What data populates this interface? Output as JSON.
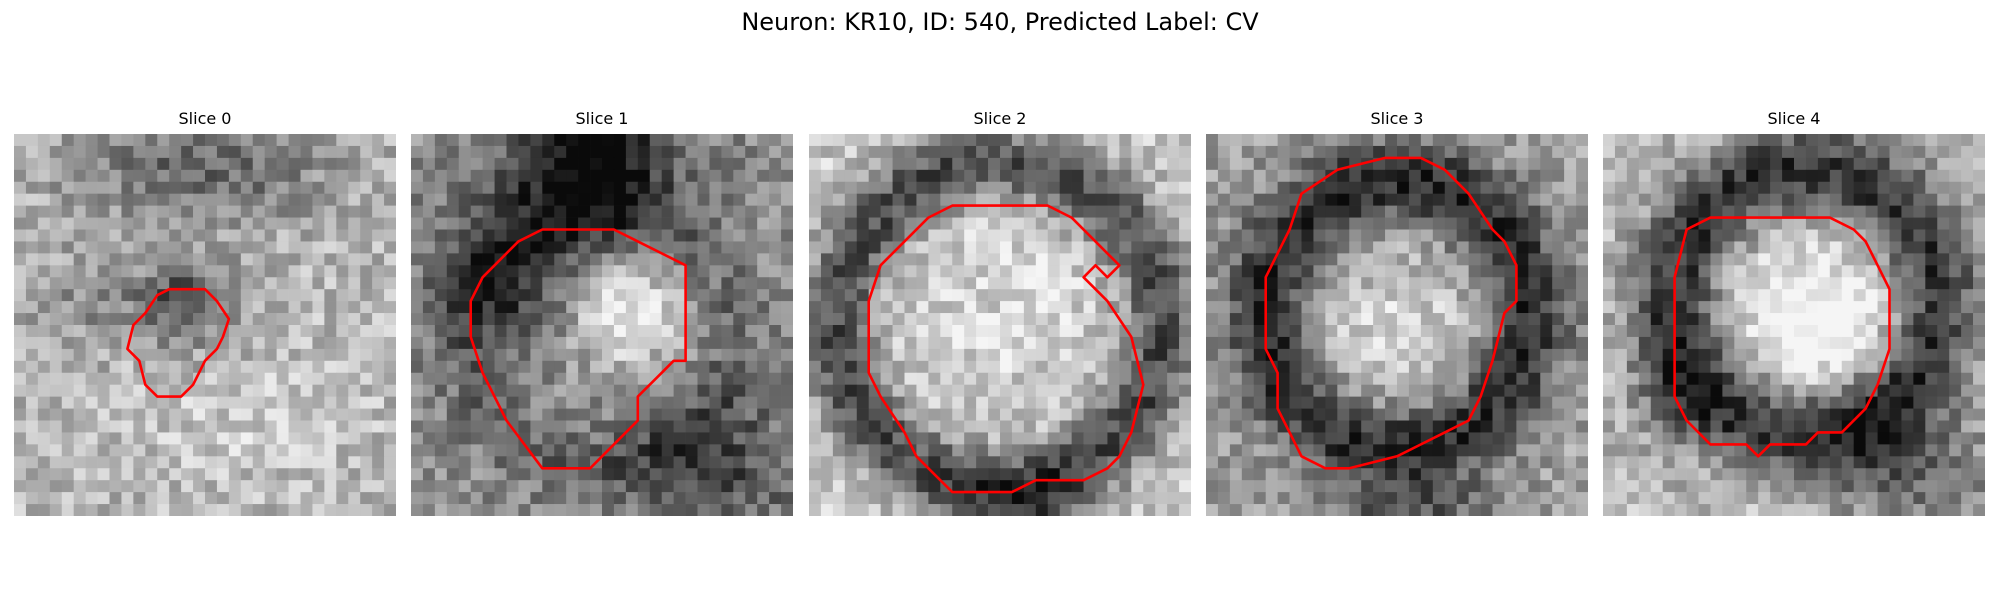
{
  "figure": {
    "title": "Neuron: KR10, ID: 540, Predicted Label: CV"
  },
  "panels": [
    {
      "title": "Slice 0",
      "image": "grayscale-slice",
      "outline_color": "#ff0000"
    },
    {
      "title": "Slice 1",
      "image": "grayscale-slice",
      "outline_color": "#ff0000"
    },
    {
      "title": "Slice 2",
      "image": "grayscale-slice",
      "outline_color": "#ff0000"
    },
    {
      "title": "Slice 3",
      "image": "grayscale-slice",
      "outline_color": "#ff0000"
    },
    {
      "title": "Slice 4",
      "image": "grayscale-slice",
      "outline_color": "#ff0000"
    }
  ]
}
